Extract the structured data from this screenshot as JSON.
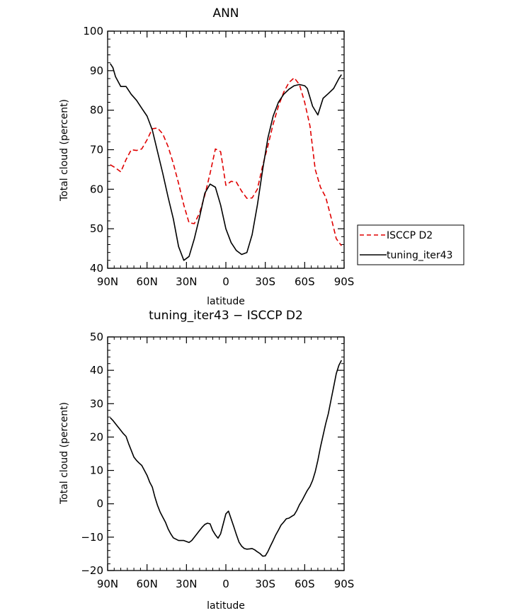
{
  "chart_data": [
    {
      "type": "line",
      "title": "ANN",
      "xlabel": "latitude",
      "ylabel": "Total cloud (percent)",
      "xlim": [
        90,
        -90
      ],
      "ylim": [
        40,
        100
      ],
      "x_ticks": [
        90,
        60,
        30,
        0,
        -30,
        -60,
        -90
      ],
      "x_tick_labels": [
        "90N",
        "60N",
        "30N",
        "0",
        "30S",
        "60S",
        "90S"
      ],
      "y_ticks": [
        40,
        50,
        60,
        70,
        80,
        90,
        100
      ],
      "y_tick_labels": [
        "40",
        "50",
        "60",
        "70",
        "80",
        "90",
        "100"
      ],
      "legend_position": "outside-right",
      "series": [
        {
          "name": "ISCCP D2",
          "color": "#e00000",
          "dash": "dashed",
          "x": [
            88,
            84,
            80,
            76,
            72,
            68,
            64,
            60,
            56,
            52,
            48,
            44,
            40,
            36,
            32,
            28,
            24,
            20,
            16,
            12,
            8,
            4,
            0,
            -4,
            -8,
            -12,
            -16,
            -20,
            -24,
            -28,
            -32,
            -36,
            -40,
            -44,
            -48,
            -52,
            -56,
            -60,
            -64,
            -68,
            -72,
            -76,
            -80,
            -84,
            -88
          ],
          "y": [
            66.2,
            65.4,
            64.4,
            67.5,
            70.0,
            69.8,
            70.2,
            72.5,
            75.3,
            75.5,
            74.0,
            70.8,
            66.5,
            61.5,
            56.0,
            51.5,
            51.3,
            54.0,
            58.5,
            64.0,
            70.2,
            69.5,
            61.0,
            62.0,
            61.8,
            59.5,
            57.7,
            57.8,
            60.0,
            66.0,
            71.0,
            76.5,
            81.0,
            84.5,
            87.0,
            88.2,
            86.5,
            82.0,
            76.0,
            65.0,
            60.5,
            58.0,
            53.0,
            47.5,
            45.7
          ]
        },
        {
          "name": "tuning_iter43",
          "color": "#000000",
          "dash": "solid",
          "x": [
            88,
            86,
            84,
            80,
            76,
            72,
            68,
            64,
            60,
            56,
            52,
            48,
            44,
            40,
            36,
            32,
            28,
            24,
            20,
            16,
            12,
            8,
            4,
            0,
            -4,
            -8,
            -12,
            -16,
            -20,
            -24,
            -28,
            -32,
            -36,
            -40,
            -44,
            -48,
            -52,
            -56,
            -60,
            -62,
            -66,
            -70,
            -74,
            -78,
            -82,
            -86,
            -88
          ],
          "y": [
            91.8,
            90.8,
            88.5,
            86.0,
            86.0,
            84.0,
            82.5,
            80.5,
            78.5,
            75.0,
            69.5,
            64.0,
            58.0,
            52.5,
            45.5,
            42.0,
            43.0,
            47.5,
            53.0,
            59.0,
            61.3,
            60.5,
            56.0,
            50.0,
            46.5,
            44.5,
            43.5,
            44.0,
            48.5,
            56.0,
            65.0,
            73.0,
            78.5,
            82.0,
            84.0,
            85.3,
            86.2,
            86.5,
            86.2,
            85.5,
            81.0,
            78.8,
            83.0,
            84.2,
            85.5,
            88.0,
            89.0
          ]
        }
      ]
    },
    {
      "type": "line",
      "title": "tuning_iter43 − ISCCP D2",
      "xlabel": "latitude",
      "ylabel": "Total cloud (percent)",
      "xlim": [
        90,
        -90
      ],
      "ylim": [
        -20,
        50
      ],
      "x_ticks": [
        90,
        60,
        30,
        0,
        -30,
        -60,
        -90
      ],
      "x_tick_labels": [
        "90N",
        "60N",
        "30N",
        "0",
        "30S",
        "60S",
        "90S"
      ],
      "y_ticks": [
        -20,
        -10,
        0,
        10,
        20,
        30,
        40,
        50
      ],
      "y_tick_labels": [
        "−20",
        "−10",
        "0",
        "10",
        "20",
        "30",
        "40",
        "50"
      ],
      "series": [
        {
          "color": "#000000",
          "dash": "solid",
          "x": [
            88,
            86,
            84,
            82,
            80,
            78,
            76,
            74,
            72,
            70,
            68,
            66,
            64,
            62,
            60,
            58,
            56,
            54,
            52,
            50,
            48,
            46,
            44,
            42,
            40,
            38,
            36,
            34,
            32,
            30,
            28,
            26,
            24,
            22,
            20,
            18,
            16,
            14,
            12,
            10,
            8,
            6,
            4,
            2,
            0,
            -2,
            -4,
            -6,
            -8,
            -10,
            -12,
            -14,
            -16,
            -18,
            -20,
            -22,
            -24,
            -26,
            -28,
            -30,
            -32,
            -34,
            -36,
            -38,
            -40,
            -42,
            -44,
            -46,
            -48,
            -50,
            -52,
            -54,
            -56,
            -58,
            -60,
            -62,
            -64,
            -66,
            -68,
            -70,
            -72,
            -74,
            -76,
            -78,
            -80,
            -82,
            -84,
            -86,
            -88
          ],
          "y": [
            25.8,
            25.0,
            24.0,
            23.0,
            22.0,
            21.0,
            20.2,
            18.0,
            16.0,
            14.0,
            13.0,
            12.2,
            11.5,
            10.0,
            8.5,
            6.5,
            5.0,
            2.0,
            -0.5,
            -2.5,
            -4.0,
            -5.5,
            -7.5,
            -9.0,
            -10.2,
            -10.6,
            -11.0,
            -11.0,
            -11.0,
            -11.3,
            -11.6,
            -11.0,
            -10.0,
            -9.0,
            -8.0,
            -7.0,
            -6.2,
            -5.8,
            -6.0,
            -8.0,
            -9.3,
            -10.3,
            -9.0,
            -6.0,
            -3.0,
            -2.2,
            -4.5,
            -6.8,
            -9.2,
            -11.5,
            -12.7,
            -13.4,
            -13.6,
            -13.5,
            -13.4,
            -13.8,
            -14.4,
            -14.9,
            -15.7,
            -15.6,
            -14.3,
            -12.6,
            -11.0,
            -9.3,
            -7.9,
            -6.4,
            -5.5,
            -4.5,
            -4.3,
            -3.8,
            -3.3,
            -2.0,
            -0.3,
            1.0,
            2.5,
            4.0,
            5.2,
            7.0,
            9.6,
            13.0,
            17.0,
            20.5,
            24.0,
            27.0,
            31.0,
            35.0,
            39.0,
            41.5,
            43.0
          ]
        }
      ]
    }
  ]
}
